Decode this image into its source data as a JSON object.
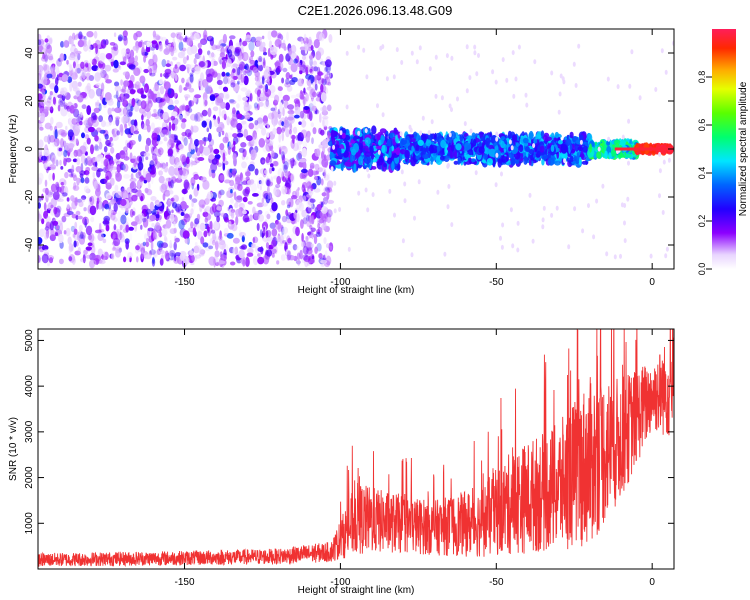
{
  "figure_title": "C2E1.2026.096.13.48.G09",
  "chart_data": [
    {
      "type": "heatmap",
      "xlabel": "Height of straight line (km)",
      "ylabel": "Frequency (Hz)",
      "xlim": [
        -197,
        7
      ],
      "ylim": [
        -50,
        50
      ],
      "xticks": [
        -150,
        -100,
        -50,
        0
      ],
      "yticks": [
        -40,
        -20,
        0,
        20,
        40
      ],
      "colorbar": {
        "label": "Normalized spectral amplitude",
        "range": [
          0,
          1
        ],
        "ticks": [
          0.0,
          0.2,
          0.4,
          0.6,
          0.8
        ]
      },
      "bands": [
        {
          "x_from": -197,
          "x_to": -103,
          "freq_spread": 48,
          "amplitude": [
            0.05,
            0.2
          ]
        },
        {
          "x_from": -103,
          "x_to": -80,
          "freq_spread": 8,
          "amplitude": [
            0.15,
            0.45
          ]
        },
        {
          "x_from": -80,
          "x_to": -20,
          "freq_spread": 6,
          "amplitude": [
            0.2,
            0.45
          ]
        },
        {
          "x_from": -20,
          "x_to": -5,
          "freq_spread": 3,
          "amplitude": [
            0.35,
            0.6
          ]
        },
        {
          "x_from": -5,
          "x_to": 6,
          "freq_spread": 1,
          "amplitude": [
            0.9,
            1.0
          ]
        }
      ],
      "grid": false
    },
    {
      "type": "line",
      "xlabel": "Height of straight line (km)",
      "ylabel": "SNR (10 * v/v)",
      "xlim": [
        -197,
        7
      ],
      "ylim": [
        0,
        5250
      ],
      "xticks": [
        -150,
        -100,
        -50,
        0
      ],
      "yticks": [
        1000,
        2000,
        3000,
        4000,
        5000
      ],
      "color": "#f03232",
      "envelope": [
        {
          "x": -197,
          "low": 50,
          "high": 350
        },
        {
          "x": -150,
          "low": 80,
          "high": 400
        },
        {
          "x": -120,
          "low": 100,
          "high": 450
        },
        {
          "x": -103,
          "low": 150,
          "high": 600
        },
        {
          "x": -95,
          "low": 300,
          "high": 1900
        },
        {
          "x": -85,
          "low": 350,
          "high": 1700
        },
        {
          "x": -70,
          "low": 300,
          "high": 1500
        },
        {
          "x": -55,
          "low": 250,
          "high": 1800
        },
        {
          "x": -45,
          "low": 300,
          "high": 2600
        },
        {
          "x": -30,
          "low": 400,
          "high": 3200
        },
        {
          "x": -20,
          "low": 500,
          "high": 4200
        },
        {
          "x": -10,
          "low": 1500,
          "high": 4200
        },
        {
          "x": 0,
          "low": 3000,
          "high": 4600
        },
        {
          "x": 7,
          "low": 2800,
          "high": 5200
        }
      ],
      "grid": false
    }
  ]
}
